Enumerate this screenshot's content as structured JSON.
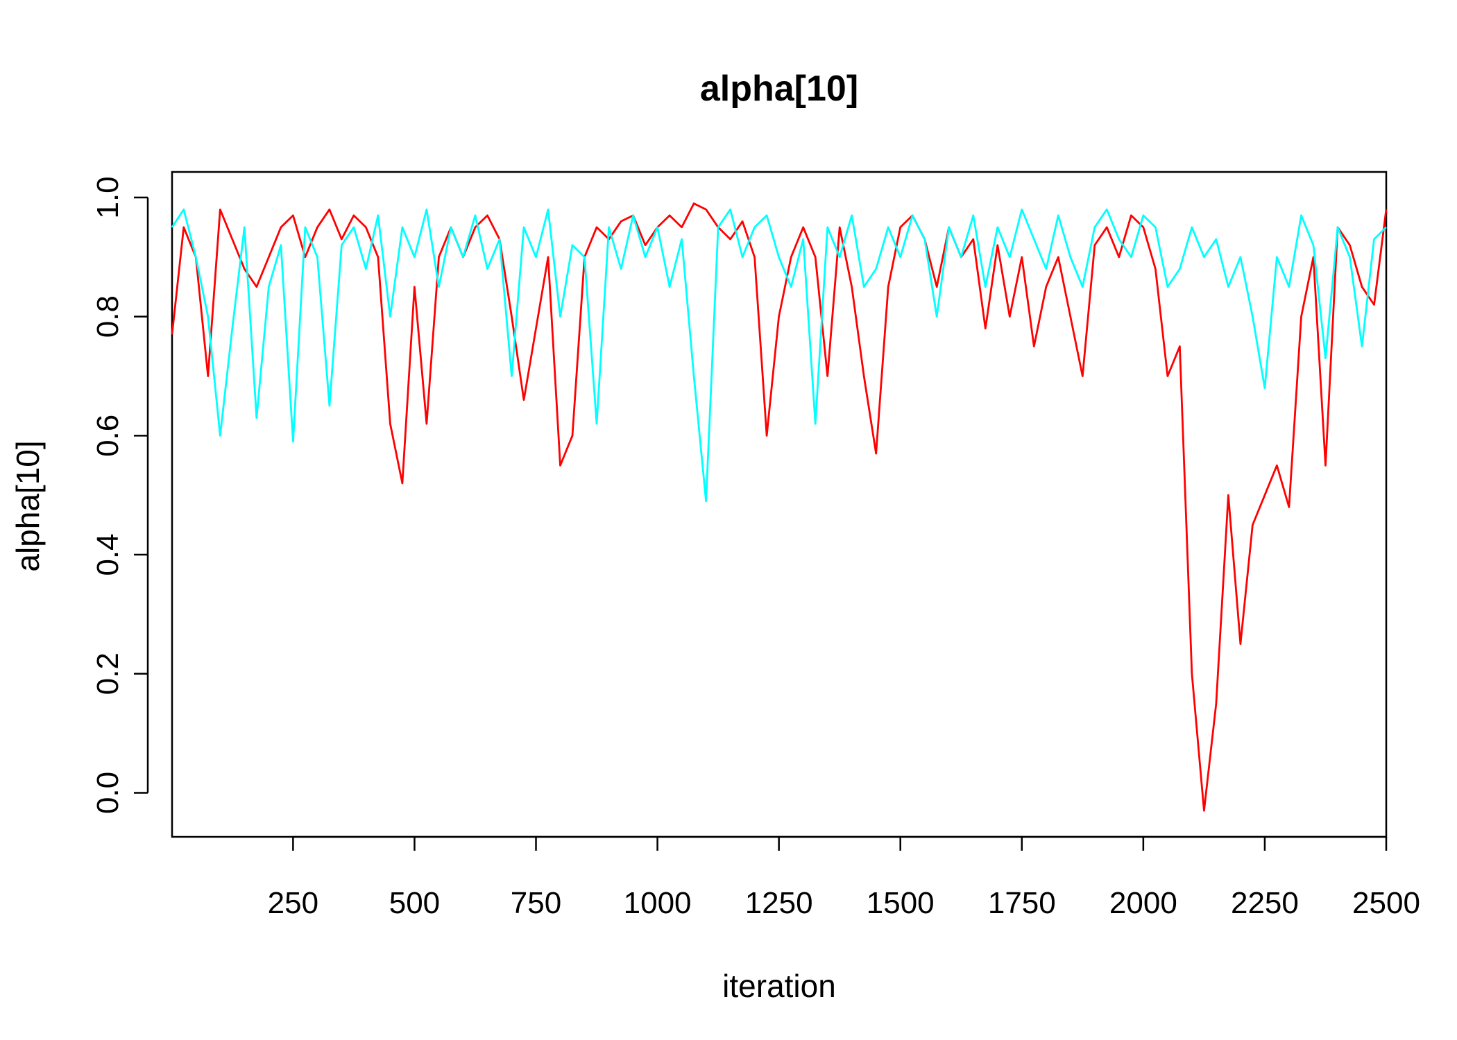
{
  "chart_data": {
    "type": "line",
    "title": "alpha[10]",
    "xlabel": "iteration",
    "ylabel": "alpha[10]",
    "x": [
      1,
      25,
      50,
      75,
      100,
      125,
      150,
      175,
      200,
      225,
      250,
      275,
      300,
      325,
      350,
      375,
      400,
      425,
      450,
      475,
      500,
      525,
      550,
      575,
      600,
      625,
      650,
      675,
      700,
      725,
      750,
      775,
      800,
      825,
      850,
      875,
      900,
      925,
      950,
      975,
      1000,
      1025,
      1050,
      1075,
      1100,
      1125,
      1150,
      1175,
      1200,
      1225,
      1250,
      1275,
      1300,
      1325,
      1350,
      1375,
      1400,
      1425,
      1450,
      1475,
      1500,
      1525,
      1550,
      1575,
      1600,
      1625,
      1650,
      1675,
      1700,
      1725,
      1750,
      1775,
      1800,
      1825,
      1850,
      1875,
      1900,
      1925,
      1950,
      1975,
      2000,
      2025,
      2050,
      2075,
      2100,
      2125,
      2150,
      2175,
      2200,
      2225,
      2250,
      2275,
      2300,
      2325,
      2350,
      2375,
      2400,
      2425,
      2450,
      2475,
      2500
    ],
    "series": [
      {
        "color": "#ff0000",
        "values": [
          0.77,
          0.95,
          0.9,
          0.7,
          0.98,
          0.93,
          0.88,
          0.85,
          0.9,
          0.95,
          0.97,
          0.9,
          0.95,
          0.98,
          0.93,
          0.97,
          0.95,
          0.9,
          0.62,
          0.52,
          0.85,
          0.62,
          0.9,
          0.95,
          0.9,
          0.95,
          0.97,
          0.93,
          0.8,
          0.66,
          0.78,
          0.9,
          0.55,
          0.6,
          0.9,
          0.95,
          0.93,
          0.96,
          0.97,
          0.92,
          0.95,
          0.97,
          0.95,
          0.99,
          0.98,
          0.95,
          0.93,
          0.96,
          0.9,
          0.6,
          0.8,
          0.9,
          0.95,
          0.9,
          0.7,
          0.95,
          0.85,
          0.7,
          0.57,
          0.85,
          0.95,
          0.97,
          0.93,
          0.85,
          0.95,
          0.9,
          0.93,
          0.78,
          0.92,
          0.8,
          0.9,
          0.75,
          0.85,
          0.9,
          0.8,
          0.7,
          0.92,
          0.95,
          0.9,
          0.97,
          0.95,
          0.88,
          0.7,
          0.75,
          0.2,
          -0.03,
          0.15,
          0.5,
          0.25,
          0.45,
          0.5,
          0.55,
          0.48,
          0.8,
          0.9,
          0.55,
          0.95,
          0.92,
          0.85,
          0.82,
          0.98
        ]
      },
      {
        "color": "#00ffff",
        "values": [
          0.95,
          0.98,
          0.9,
          0.8,
          0.6,
          0.78,
          0.95,
          0.63,
          0.85,
          0.92,
          0.59,
          0.95,
          0.9,
          0.65,
          0.92,
          0.95,
          0.88,
          0.97,
          0.8,
          0.95,
          0.9,
          0.98,
          0.85,
          0.95,
          0.9,
          0.97,
          0.88,
          0.93,
          0.7,
          0.95,
          0.9,
          0.98,
          0.8,
          0.92,
          0.9,
          0.62,
          0.95,
          0.88,
          0.97,
          0.9,
          0.95,
          0.85,
          0.93,
          0.7,
          0.49,
          0.95,
          0.98,
          0.9,
          0.95,
          0.97,
          0.9,
          0.85,
          0.93,
          0.62,
          0.95,
          0.9,
          0.97,
          0.85,
          0.88,
          0.95,
          0.9,
          0.97,
          0.93,
          0.8,
          0.95,
          0.9,
          0.97,
          0.85,
          0.95,
          0.9,
          0.98,
          0.93,
          0.88,
          0.97,
          0.9,
          0.85,
          0.95,
          0.98,
          0.93,
          0.9,
          0.97,
          0.95,
          0.85,
          0.88,
          0.95,
          0.9,
          0.93,
          0.85,
          0.9,
          0.8,
          0.68,
          0.9,
          0.85,
          0.97,
          0.92,
          0.73,
          0.95,
          0.9,
          0.75,
          0.93,
          0.95
        ]
      }
    ],
    "xlim": [
      1,
      2500
    ],
    "ylim": [
      -0.074,
      1.043
    ],
    "xticks": [
      250,
      500,
      750,
      1000,
      1250,
      1500,
      1750,
      2000,
      2250,
      2500
    ],
    "yticks": [
      {
        "value": 0,
        "label": "0.0"
      },
      0.2,
      0.4,
      0.6,
      0.8,
      {
        "value": 1,
        "label": "1.0"
      }
    ],
    "grid": false
  }
}
